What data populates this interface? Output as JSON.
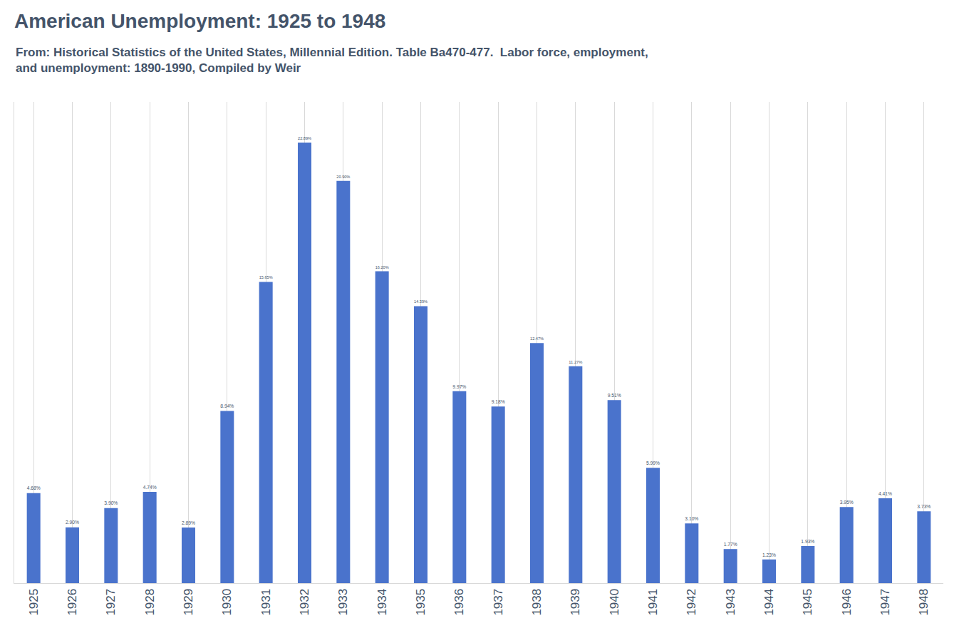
{
  "chart_data": {
    "type": "bar",
    "title": "American Unemployment: 1925 to 1948",
    "subtitle": "From: Historical Statistics of the United States, Millennial Edition. Table Ba470-477.  Labor force, employment,\nand unemployment: 1890-1990, Compiled by Weir",
    "categories": [
      "1925",
      "1926",
      "1927",
      "1928",
      "1929",
      "1930",
      "1931",
      "1932",
      "1933",
      "1934",
      "1935",
      "1936",
      "1937",
      "1938",
      "1939",
      "1940",
      "1941",
      "1942",
      "1943",
      "1944",
      "1945",
      "1946",
      "1947",
      "1948"
    ],
    "values": [
      4.68,
      2.9,
      3.9,
      4.74,
      2.89,
      8.94,
      15.65,
      22.89,
      20.9,
      16.2,
      14.39,
      9.97,
      9.18,
      12.47,
      11.27,
      9.51,
      5.99,
      3.1,
      1.77,
      1.23,
      1.93,
      3.95,
      4.41,
      3.73
    ],
    "value_labels": [
      "4.68%",
      "2.90%",
      "3.90%",
      "4.74%",
      "2.89%",
      "8.94%",
      "15.65%",
      "22.89%",
      "20.90%",
      "16.20%",
      "14.39%",
      "9.97%",
      "9.18%",
      "12.47%",
      "11.27%",
      "9.51%",
      "5.99%",
      "3.10%",
      "1.77%",
      "1.23%",
      "1.93%",
      "3.95%",
      "4.41%",
      "3.73%"
    ],
    "color": "#4a73cc",
    "ylim": [
      0,
      25
    ],
    "yticks": [],
    "grid": "x",
    "data_labels": true,
    "tick_labels": "x"
  }
}
